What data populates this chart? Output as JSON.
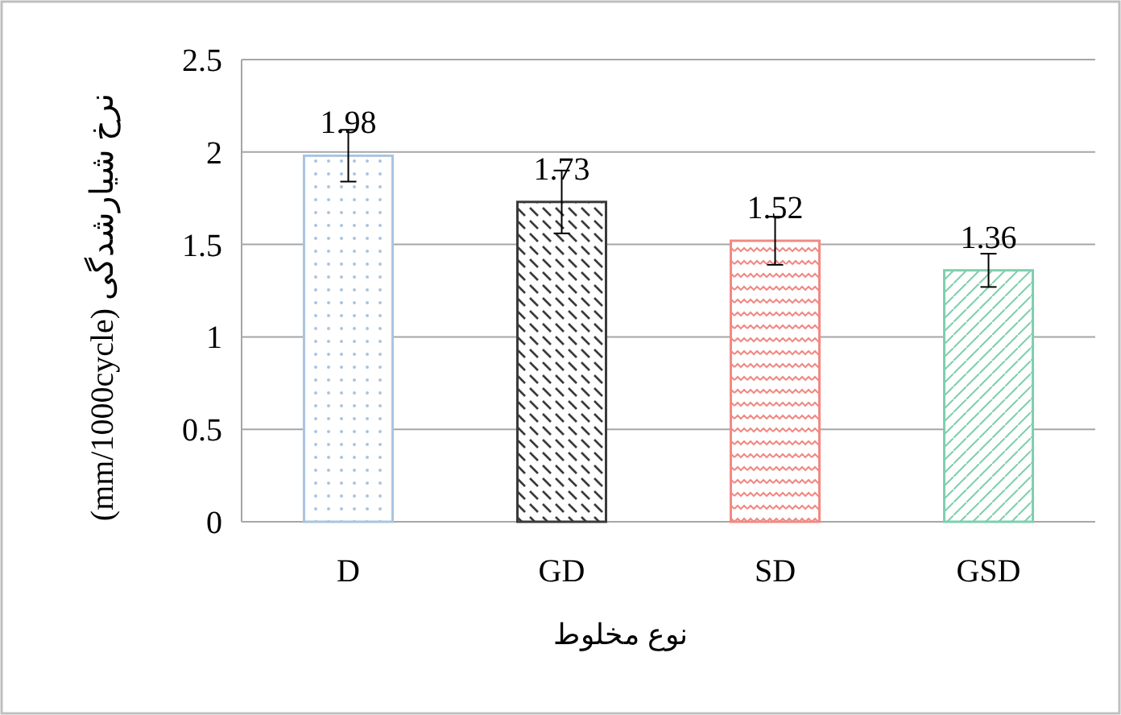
{
  "chart_data": {
    "type": "bar",
    "xlabel": "نوع مخلوط",
    "ylabel": "(mm/1000cycle) نرخ شیارشدگی",
    "categories": [
      "D",
      "GD",
      "SD",
      "GSD"
    ],
    "values": [
      1.98,
      1.73,
      1.52,
      1.36
    ],
    "errors": [
      0.14,
      0.17,
      0.13,
      0.09
    ],
    "colors": [
      "#a9c4e0",
      "#3a3a3a",
      "#f08a84",
      "#7fcfae"
    ],
    "ylim": [
      0,
      2.5
    ],
    "yticks": [
      0,
      0.5,
      1,
      1.5,
      2,
      2.5
    ],
    "grid": "y",
    "data_labels": true
  }
}
